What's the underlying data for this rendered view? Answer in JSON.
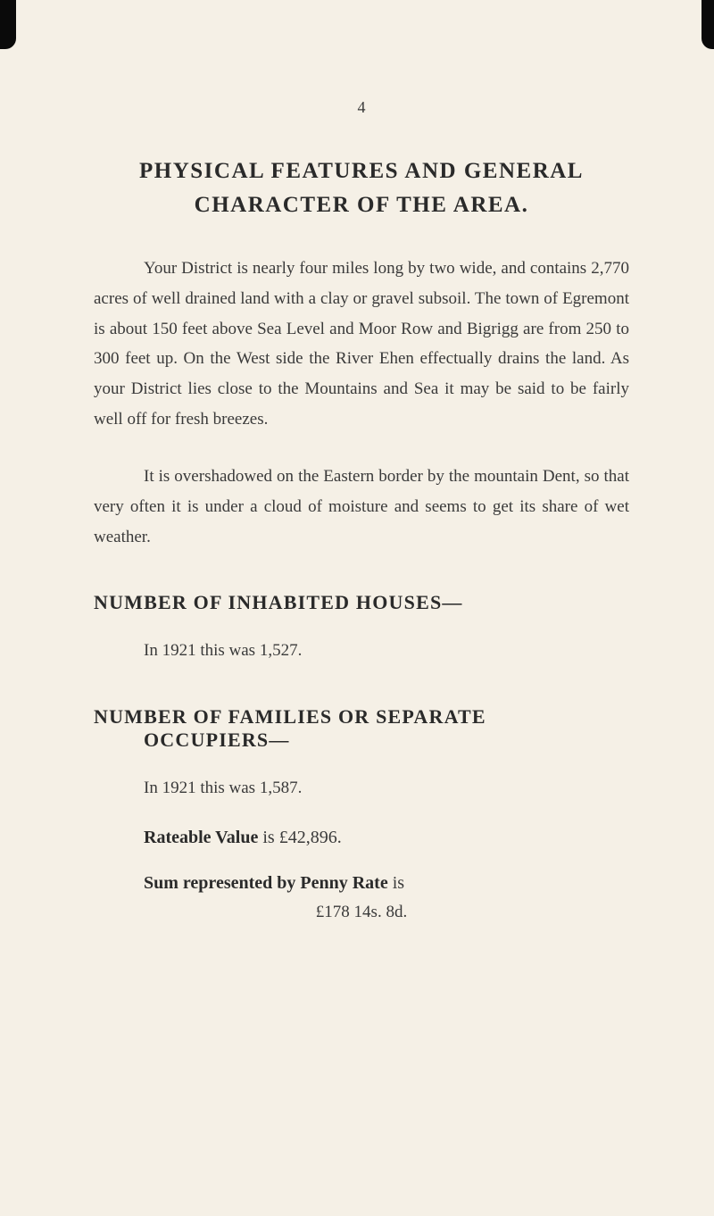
{
  "page": {
    "number": "4",
    "background_color": "#f5f0e6",
    "text_color": "#2a2a2a",
    "body_text_color": "#3a3a3a"
  },
  "heading1": {
    "line1": "PHYSICAL FEATURES AND GENERAL",
    "line2": "CHARACTER OF THE AREA."
  },
  "paragraph1": "Your District is nearly four miles long by two wide, and contains 2,770 acres of well drained land with a clay or gravel subsoil. The town of Egremont is about 150 feet above Sea Level and Moor Row and Bigrigg are from 250 to 300 feet up. On the West side the River Ehen effectually drains the land. As your District lies close to the Mountains and Sea it may be said to be fairly well off for fresh breezes.",
  "paragraph2": "It is overshadowed on the Eastern border by the mountain Dent, so that very often it is under a cloud of moisture and seems to get its share of wet weather.",
  "section2": {
    "heading": "NUMBER OF INHABITED HOUSES—",
    "text": "In 1921 this was 1,527."
  },
  "section3": {
    "heading_line1": "NUMBER OF FAMILIES OR SEPARATE",
    "heading_line2": "OCCUPIERS—",
    "text": "In 1921 this was 1,587."
  },
  "rateable": {
    "label": "Rateable Value",
    "connector": " is ",
    "value": "£42,896."
  },
  "penny_rate": {
    "label": "Sum represented by Penny Rate",
    "connector": " is",
    "value": "£178 14s. 8d."
  },
  "typography": {
    "heading_fontsize": 25,
    "section_heading_fontsize": 22,
    "body_fontsize": 19,
    "page_number_fontsize": 18,
    "line_height": 1.78,
    "text_indent": 56
  }
}
